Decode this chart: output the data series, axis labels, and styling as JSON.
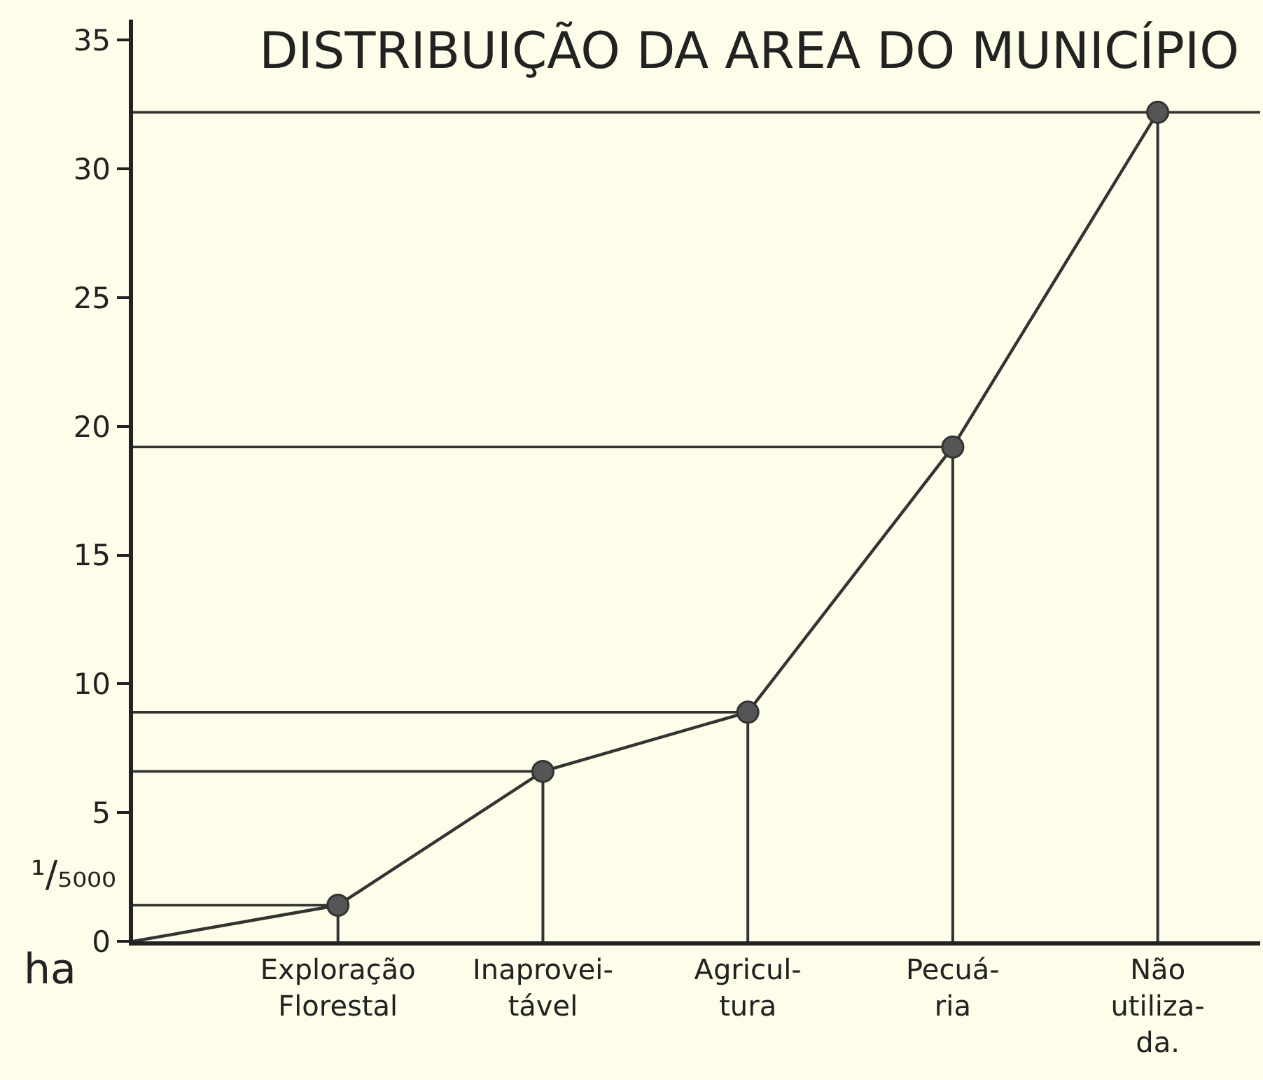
{
  "chart_data": {
    "type": "line",
    "title": "DISTRIBUIÇÃO DA AREA DO MUNICÍPIO",
    "ylabel": "¹/₅₀₀₀",
    "annotations": [
      "ha"
    ],
    "categories": [
      null,
      "Exploração\nFlorestal",
      "Inaprovei-\ntável",
      "Agricul-\ntura",
      "Pecuá-\nria",
      "Não\nutiliza-\nda."
    ],
    "series": [
      {
        "marker": "none",
        "color": "#333333",
        "values": [
          0,
          1.4,
          6.6,
          8.9,
          19.2,
          32.2
        ]
      },
      {
        "type": "lollipop",
        "color": "#333333",
        "values": [
          null,
          1.4,
          6.6,
          8.9,
          19.2,
          32.2
        ]
      }
    ],
    "ylim": [
      0,
      35.8
    ],
    "yticks": [
      0,
      5,
      10,
      15,
      20,
      25,
      30,
      35
    ],
    "grid": false,
    "legend": false,
    "marker": "circle",
    "line_style": "solid",
    "ref_lines": [
      {
        "axis": "y",
        "value": 1.4
      },
      {
        "axis": "y",
        "value": 6.6
      },
      {
        "axis": "y",
        "value": 8.9
      },
      {
        "axis": "y",
        "value": 19.2
      },
      {
        "axis": "y",
        "value": 32.2
      }
    ]
  }
}
